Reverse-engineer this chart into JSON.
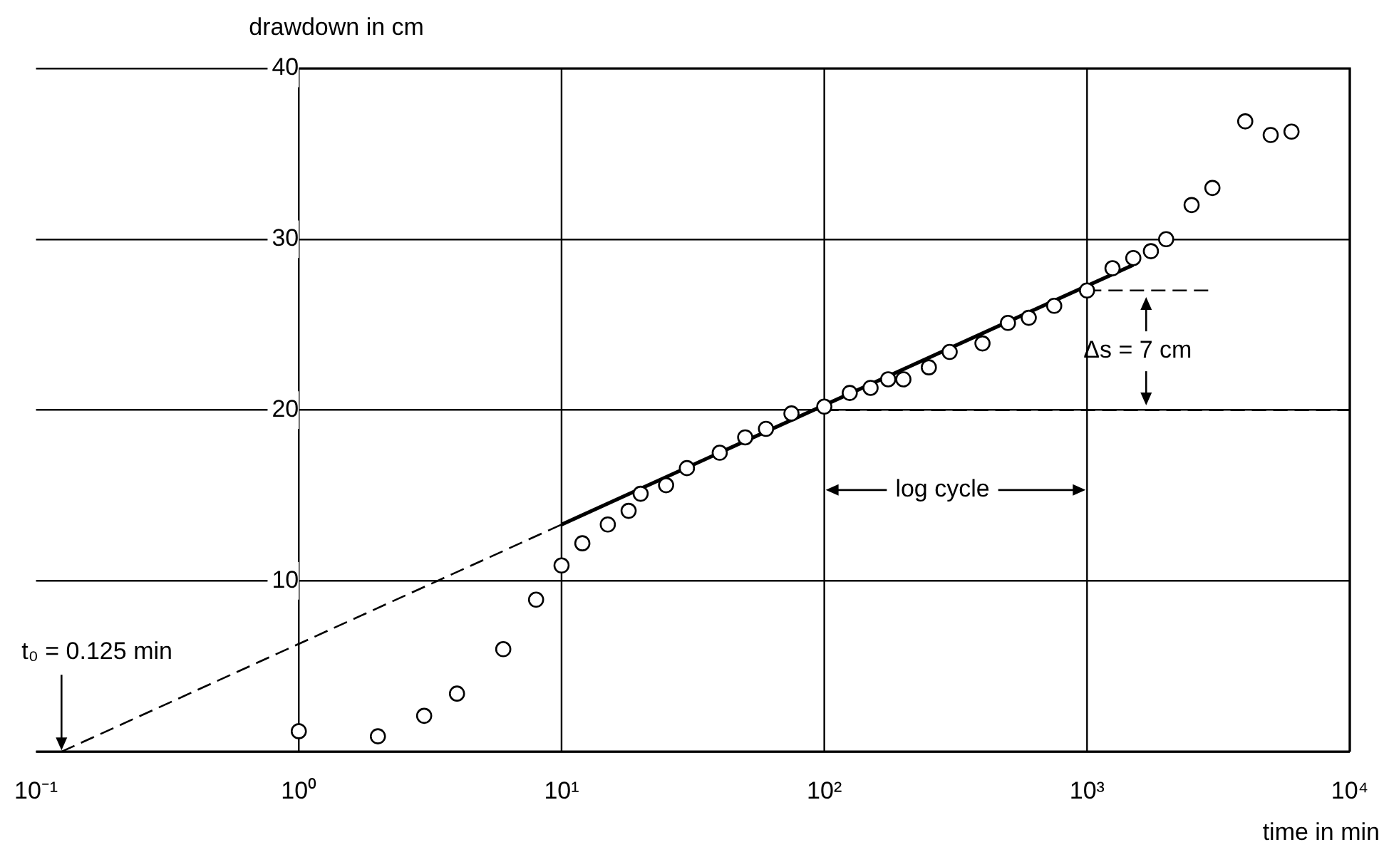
{
  "chart_data": {
    "type": "scatter",
    "xlabel": "time in min",
    "ylabel": "drawdown in cm",
    "log": "x",
    "grid": true,
    "legend": false,
    "marker": "circle",
    "xlim": [
      0.1,
      10000
    ],
    "xticks": [
      {
        "value": 0.1,
        "label": "10⁻¹"
      },
      {
        "value": 1,
        "label": "10⁰"
      },
      {
        "value": 10,
        "label": "10¹"
      },
      {
        "value": 100,
        "label": "10²"
      },
      {
        "value": 1000,
        "label": "10³"
      },
      {
        "value": 10000,
        "label": "10⁴"
      }
    ],
    "ylim": [
      0,
      40
    ],
    "yticks": [
      {
        "value": 0,
        "label": null
      },
      10,
      20,
      30,
      40
    ],
    "series": [
      {
        "color": "#000000",
        "x": [
          1,
          2,
          3,
          4,
          6,
          8,
          10,
          12,
          15,
          18,
          20,
          25,
          30,
          40,
          50,
          60,
          75,
          100,
          125,
          150,
          175,
          200,
          250,
          300,
          400,
          500,
          600,
          750,
          1000,
          1250,
          1500,
          1750,
          2000,
          2500,
          3000,
          4000,
          5000,
          6000
        ],
        "values": [
          1.2,
          0.9,
          2.1,
          3.4,
          6.0,
          8.9,
          10.9,
          12.2,
          13.3,
          14.1,
          15.1,
          15.6,
          16.6,
          17.5,
          18.4,
          18.9,
          19.8,
          20.2,
          21.0,
          21.3,
          21.8,
          21.8,
          22.5,
          23.4,
          23.9,
          25.1,
          25.4,
          26.1,
          27.0,
          28.3,
          28.9,
          29.3,
          30.0,
          32.0,
          33.0,
          36.9,
          36.1,
          36.3
        ]
      },
      {
        "type": "line",
        "marker": "none",
        "color": "#000000",
        "line_style": "solid",
        "x": [
          10,
          1500
        ],
        "values": [
          13.3,
          28.5
        ]
      },
      {
        "type": "line",
        "marker": "none",
        "color": "#000000",
        "line_style": "dashed",
        "x": [
          0.125,
          10
        ],
        "values": [
          0,
          13.3
        ]
      },
      {
        "type": "line",
        "marker": "none",
        "color": "#000000",
        "line_style": "dashed",
        "x": [
          100,
          10000
        ],
        "values": [
          20,
          20
        ]
      },
      {
        "type": "line",
        "marker": "none",
        "color": "#000000",
        "line_style": "dashed",
        "x": [
          1000,
          3000
        ],
        "values": [
          27,
          27
        ]
      }
    ],
    "annotations": [
      {
        "text": "t₀ = 0.125 min",
        "x": 0.125,
        "y": 0
      },
      "log cycle",
      "Δs = 7 cm"
    ]
  }
}
